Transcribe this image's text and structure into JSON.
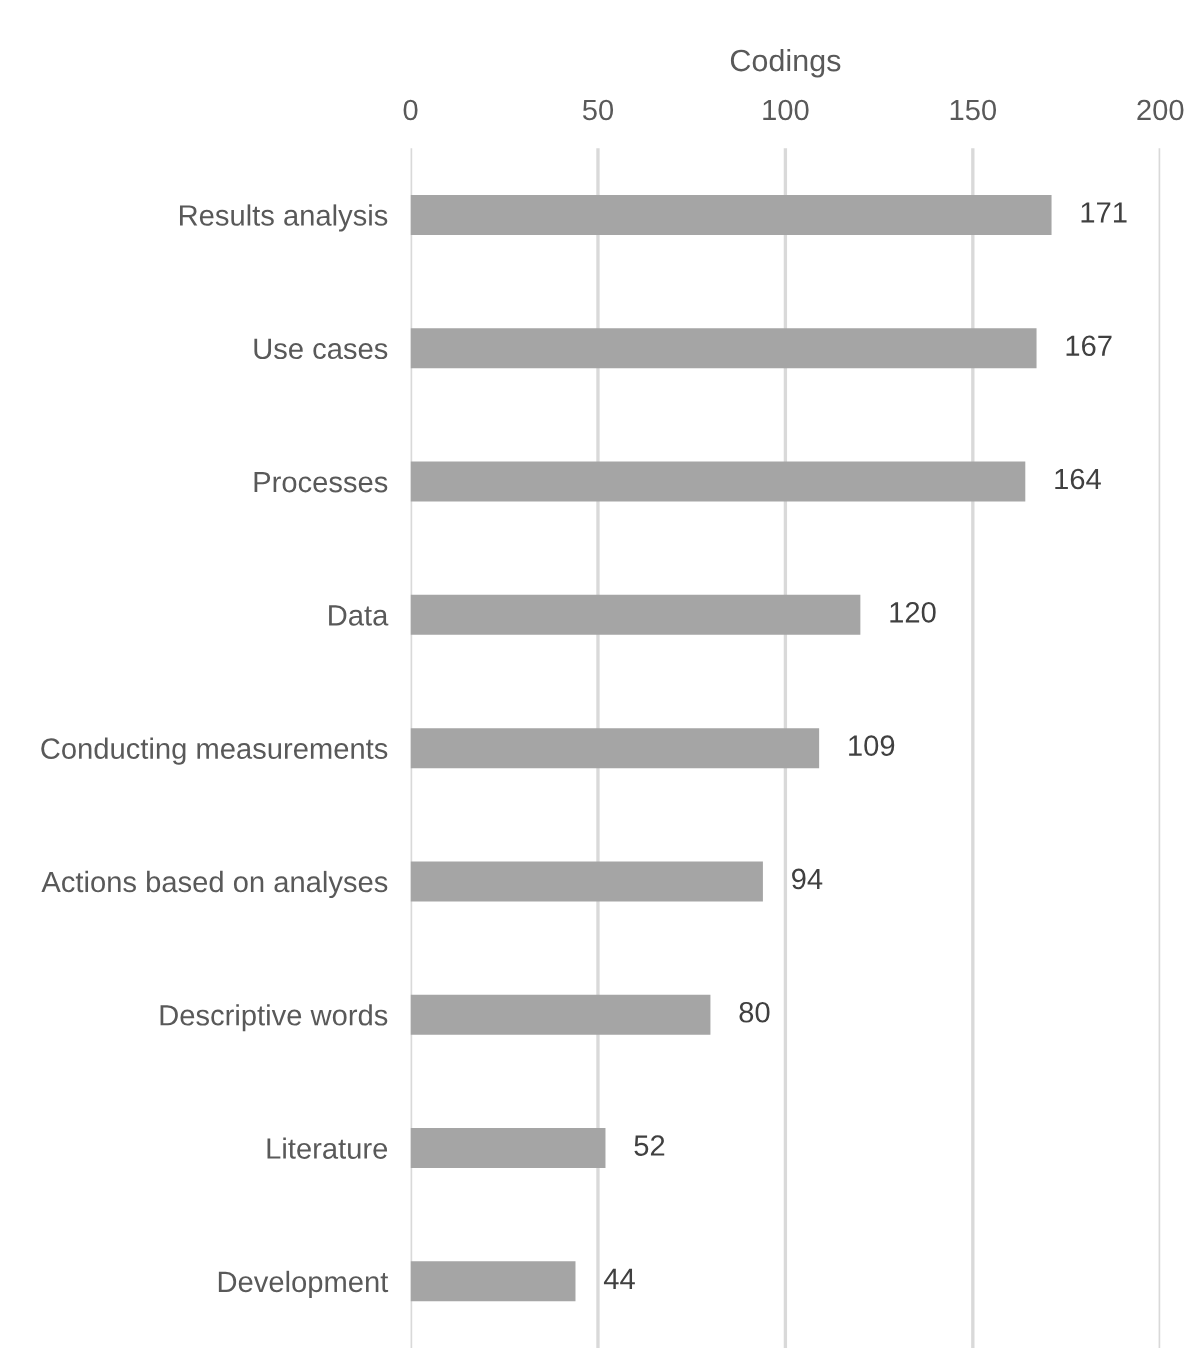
{
  "chart_data": {
    "type": "bar",
    "orientation": "horizontal",
    "xlabel": "Codings",
    "categories": [
      "Results analysis",
      "Use cases",
      "Processes",
      "Data",
      "Conducting measurements",
      "Actions based on analyses",
      "Descriptive words",
      "Literature",
      "Development"
    ],
    "values": [
      171,
      167,
      164,
      120,
      109,
      94,
      80,
      52,
      44
    ],
    "color": "#a5a5a5",
    "xlim": [
      0,
      200
    ],
    "xticks": [
      0,
      50,
      100,
      150,
      200
    ],
    "grid": "x",
    "data_labels": true
  }
}
